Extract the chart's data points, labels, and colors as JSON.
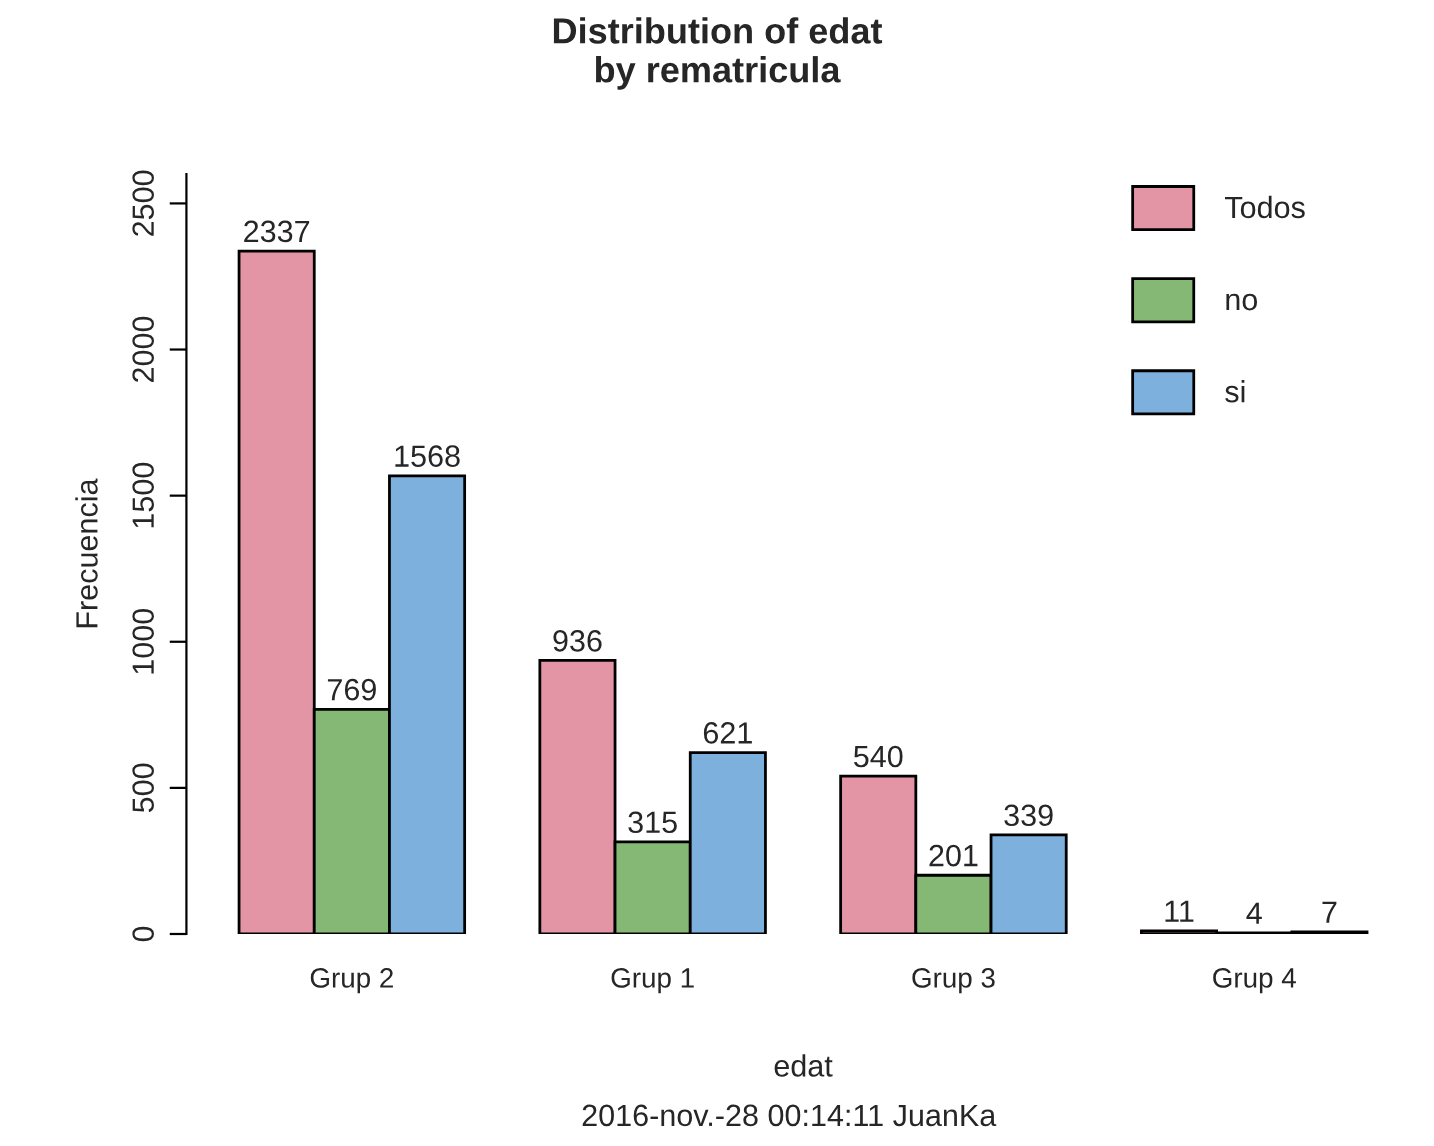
{
  "chart_data": {
    "type": "bar",
    "title": "Distribution of edat\nby rematricula",
    "xlabel": "edat",
    "ylabel": "Frecuencia",
    "categories": [
      "Grup 2",
      "Grup 1",
      "Grup 3",
      "Grup 4"
    ],
    "series": [
      {
        "name": "Todos",
        "color": "#e495a5",
        "values": [
          2337,
          936,
          540,
          11
        ]
      },
      {
        "name": "no",
        "color": "#86b875",
        "values": [
          769,
          315,
          201,
          4
        ]
      },
      {
        "name": "si",
        "color": "#7db0dd",
        "values": [
          1568,
          621,
          339,
          7
        ]
      }
    ],
    "ylim": [
      0,
      2600
    ],
    "yticks": [
      0,
      500,
      1000,
      1500,
      2000,
      2500
    ],
    "data_labels": true,
    "legend": "top right",
    "grid": false,
    "annotations": [
      "2016-nov.-28 00:14:11 JuanKa"
    ]
  }
}
